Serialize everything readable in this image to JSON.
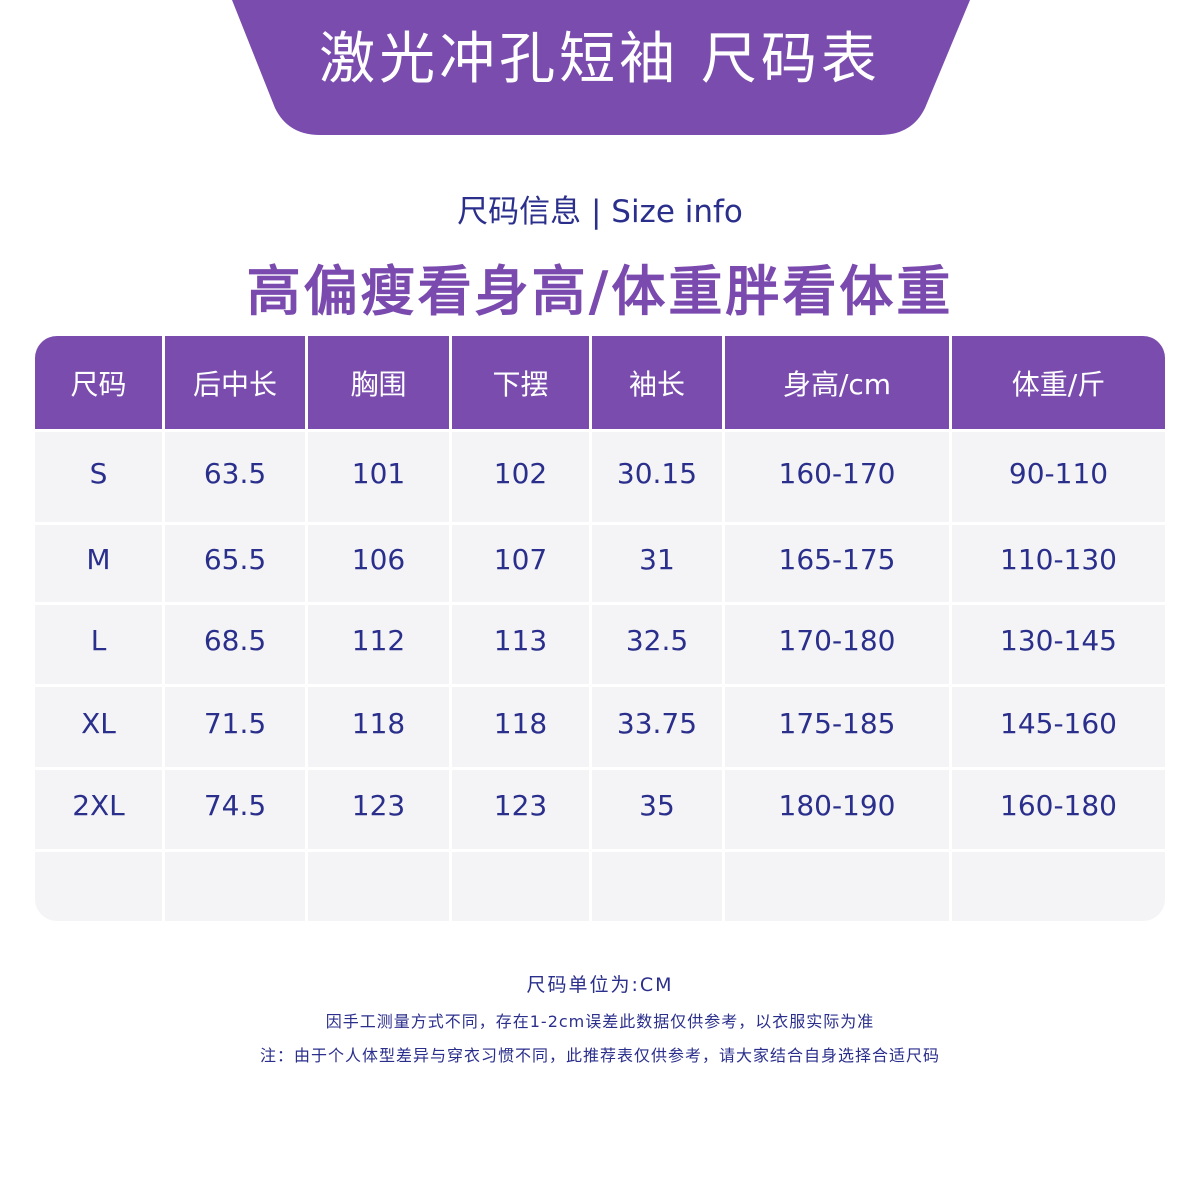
{
  "header": {
    "title": "激光冲孔短袖 尺码表",
    "subtitle": "尺码信息 | Size info",
    "slogan": "高偏瘦看身高/体重胖看体重"
  },
  "table": {
    "columns": [
      "尺码",
      "后中长",
      "胸围",
      "下摆",
      "袖长",
      "身高/cm",
      "体重/斤"
    ],
    "rows": [
      [
        "S",
        "63.5",
        "101",
        "102",
        "30.15",
        "160-170",
        "90-110"
      ],
      [
        "M",
        "65.5",
        "106",
        "107",
        "31",
        "165-175",
        "110-130"
      ],
      [
        "L",
        "68.5",
        "112",
        "113",
        "32.5",
        "170-180",
        "130-145"
      ],
      [
        "XL",
        "71.5",
        "118",
        "118",
        "33.75",
        "175-185",
        "145-160"
      ],
      [
        "2XL",
        "74.5",
        "123",
        "123",
        "35",
        "180-190",
        "160-180"
      ]
    ]
  },
  "notes": [
    "尺码单位为:CM",
    "因手工测量方式不同，存在1-2cm误差此数据仅供参考，以衣服实际为准",
    "注：由于个人体型差异与穿衣习惯不同，此推荐表仅供参考，请大家结合自身选择合适尺码"
  ]
}
